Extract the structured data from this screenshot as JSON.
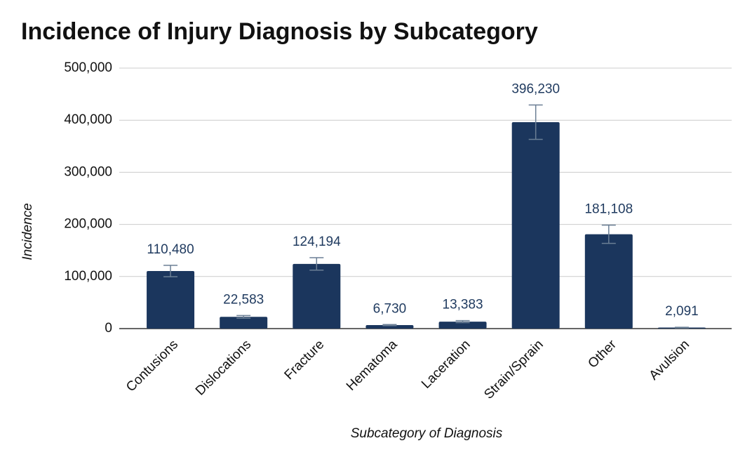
{
  "chart_data": {
    "type": "bar",
    "title": "Incidence of Injury Diagnosis by Subcategory",
    "x_label": "Subcategory of Diagnosis",
    "y_label": "Incidence",
    "categories": [
      "Contusions",
      "Dislocations",
      "Fracture",
      "Hematoma",
      "Laceration",
      "Strain/Sprain",
      "Other",
      "Avulsion"
    ],
    "values": [
      110480,
      22583,
      124194,
      6730,
      13383,
      396230,
      181108,
      2091
    ],
    "value_labels": [
      "110,480",
      "22,583",
      "124,194",
      "6,730",
      "13,383",
      "396,230",
      "181,108",
      "2,091"
    ],
    "errors": [
      11000,
      2500,
      12000,
      1000,
      2000,
      33000,
      17500,
      500
    ],
    "color": "#1b365d",
    "error_color": "#6b7f95",
    "ylim": [
      0,
      500000
    ],
    "yticks": [
      0,
      {
        "value": 100000,
        "label": "100,000"
      },
      {
        "value": 200000,
        "label": "200,000"
      },
      {
        "value": 300000,
        "label": "300,000"
      },
      {
        "value": 400000,
        "label": "400,000"
      },
      {
        "value": 500000,
        "label": "500,000"
      }
    ],
    "grid": true
  }
}
